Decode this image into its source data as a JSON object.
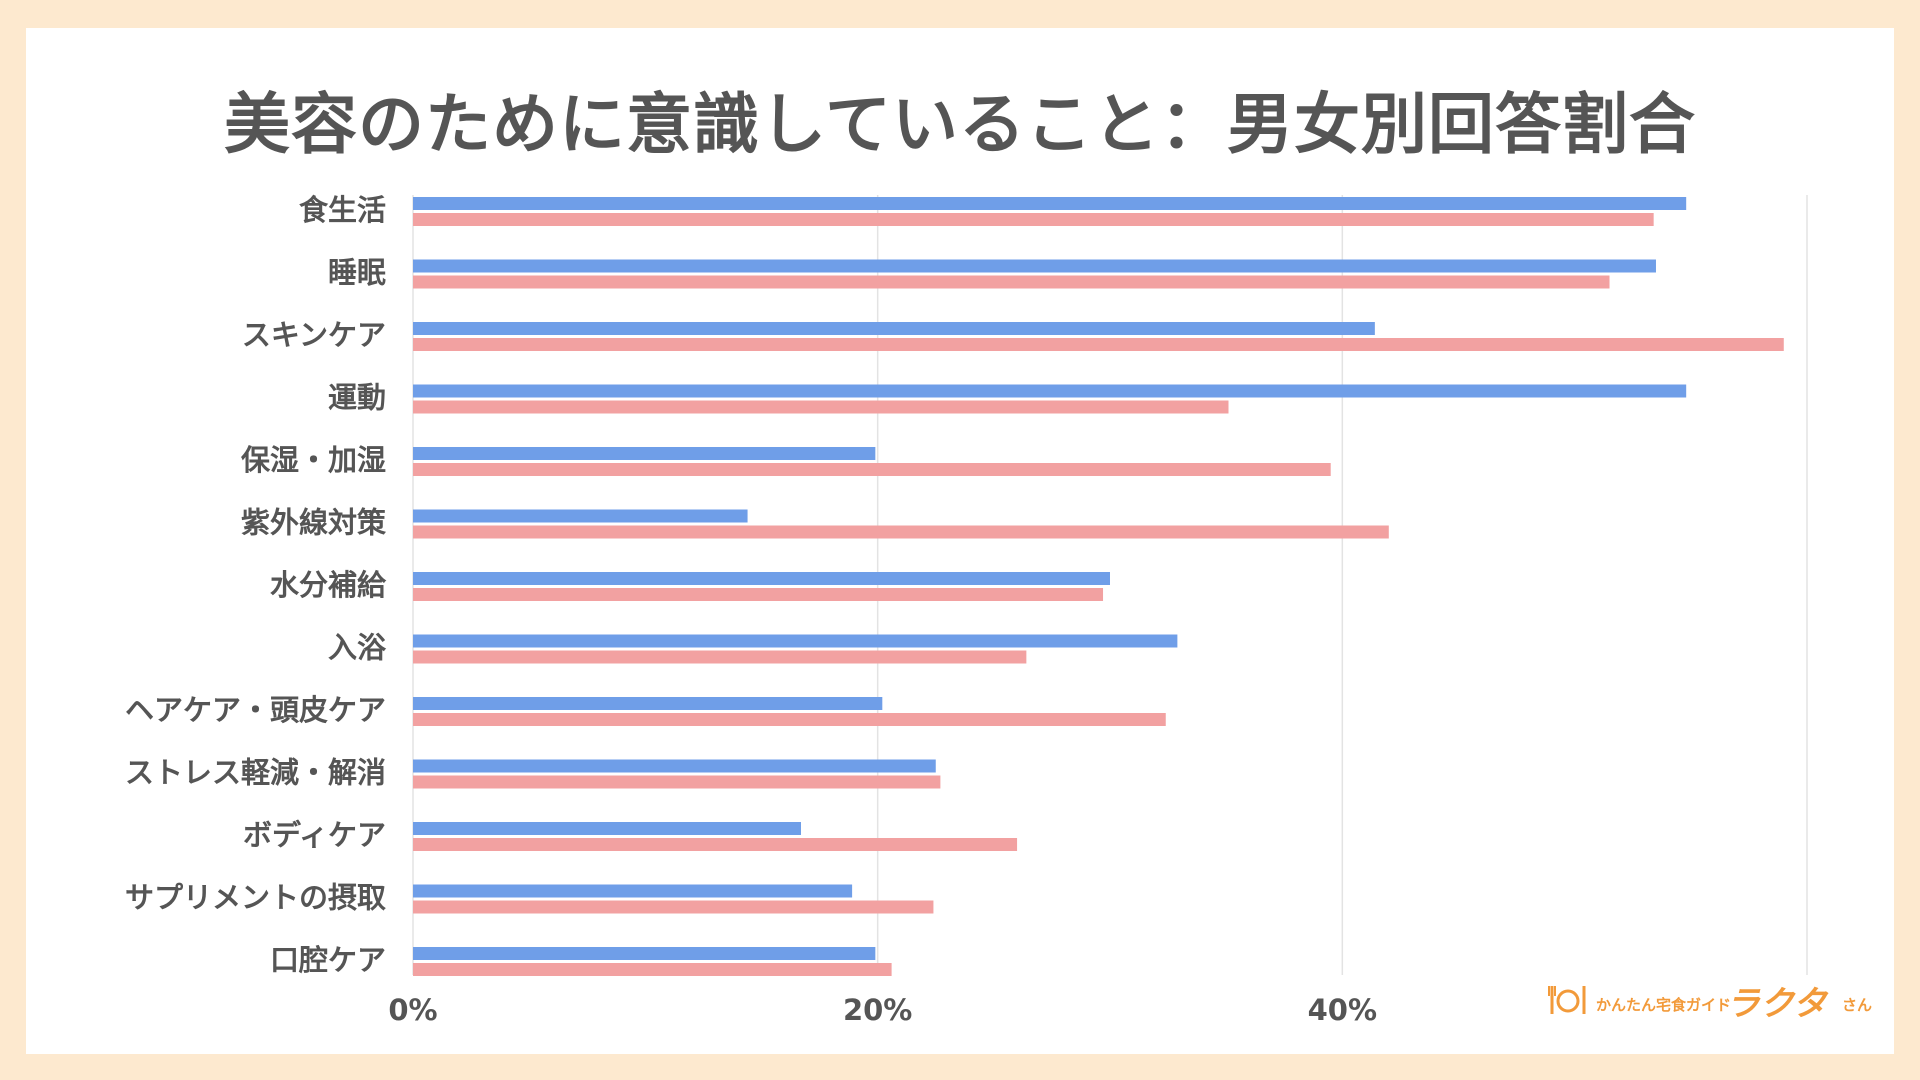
{
  "title": "美容のために意識していること：男女別回答割合",
  "logo": {
    "sub_text": "かんたん宅食ガイド",
    "main_text": "ラクタ",
    "suffix": "さん"
  },
  "chart_data": {
    "type": "bar",
    "orientation": "horizontal",
    "title": "美容のために意識していること：男女別回答割合",
    "categories": [
      "食生活",
      "睡眠",
      "スキンケア",
      "運動",
      "保湿・加湿",
      "紫外線対策",
      "水分補給",
      "入浴",
      "ヘアケア・頭皮ケア",
      "ストレス軽減・解消",
      "ボディケア",
      "サプリメントの摂取",
      "口腔ケア"
    ],
    "series": [
      {
        "color": "#6f9ee8",
        "values": [
          54.8,
          53.5,
          41.4,
          54.8,
          19.9,
          14.4,
          30.0,
          32.9,
          20.2,
          22.5,
          16.7,
          18.9,
          19.9
        ]
      },
      {
        "color": "#f2a1a1",
        "values": [
          53.4,
          51.5,
          59.0,
          35.1,
          39.5,
          42.0,
          29.7,
          26.4,
          32.4,
          22.7,
          26.0,
          22.4,
          20.6
        ]
      }
    ],
    "x_ticks": [
      "0%",
      "20%",
      "40%"
    ],
    "xlim": [
      0,
      60
    ],
    "grid": true,
    "legend": "none"
  }
}
